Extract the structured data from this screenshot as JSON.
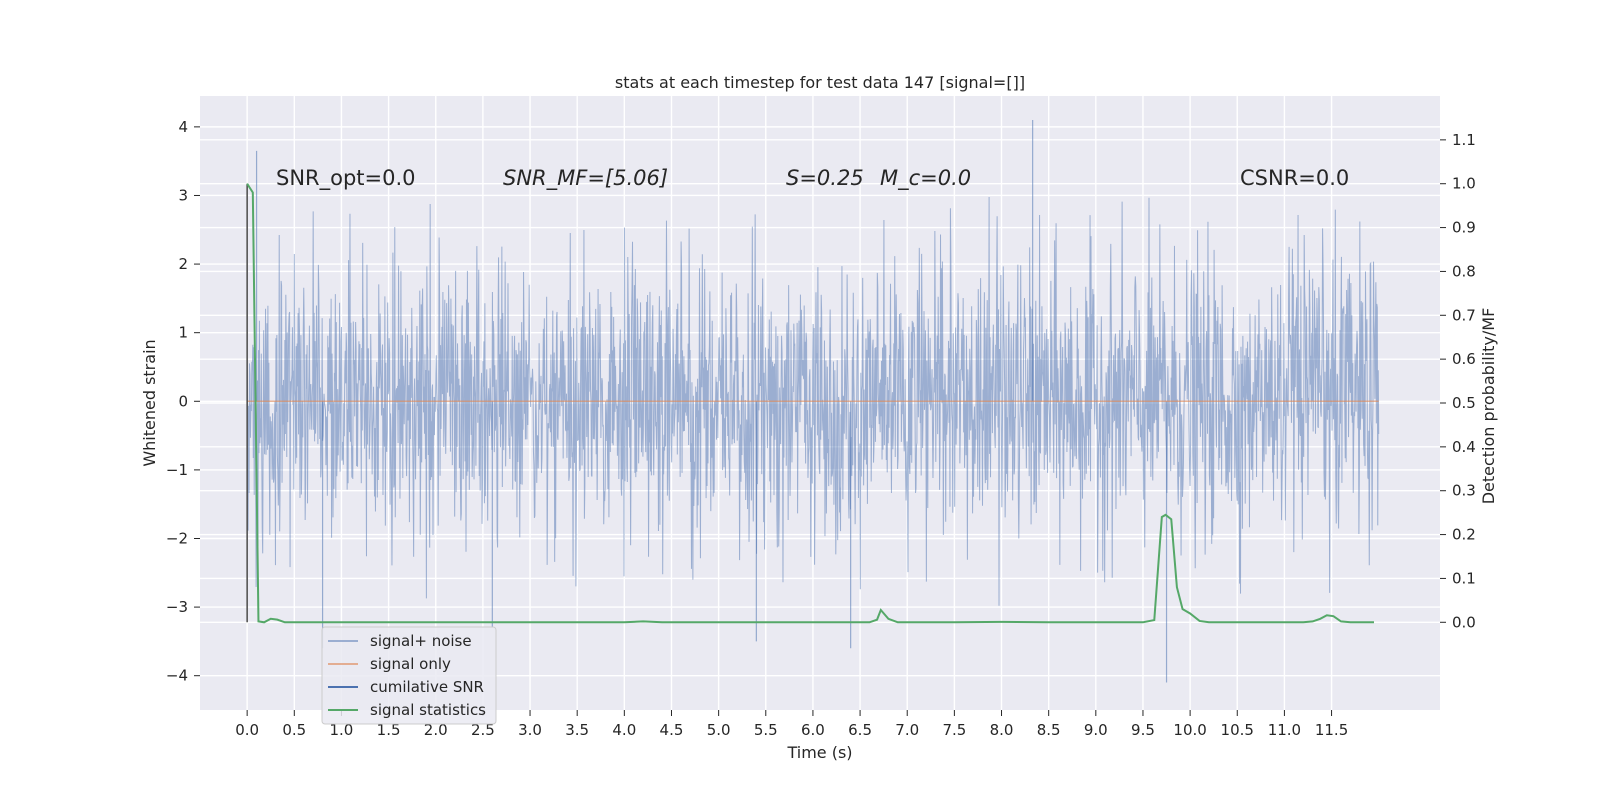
{
  "chart_data": {
    "type": "line",
    "title": "stats at each timestep for test data 147 [signal=[]]",
    "xlabel": "Time (s)",
    "ylabel": "Whitened strain",
    "y2label": "Detection probability/MF",
    "xlim": [
      -0.5,
      12.65
    ],
    "ylim": [
      -4.5,
      4.45
    ],
    "y2lim": [
      -0.2,
      1.2
    ],
    "x_ticks": [
      0.0,
      0.5,
      1.0,
      1.5,
      2.0,
      2.5,
      3.0,
      3.5,
      4.0,
      4.5,
      5.0,
      5.5,
      6.0,
      6.5,
      7.0,
      7.5,
      8.0,
      8.5,
      9.0,
      9.5,
      10.0,
      10.5,
      11.0,
      11.5
    ],
    "x_tick_labels": [
      "0.0",
      "0.5",
      "1.0",
      "1.5",
      "2.0",
      "2.5",
      "3.0",
      "3.5",
      "4.0",
      "4.5",
      "5.0",
      "5.5",
      "6.0",
      "6.5",
      "7.0",
      "7.5",
      "8.0",
      "8.5",
      "9.0",
      "9.5",
      "10.0",
      "10.5",
      "11.0",
      "11.5"
    ],
    "y_ticks": [
      4,
      3,
      2,
      1,
      0,
      -1,
      -2,
      -3,
      -4
    ],
    "y_tick_labels": [
      "4",
      "3",
      "2",
      "1",
      "0",
      "−1",
      "−2",
      "−3",
      "−4"
    ],
    "y2_ticks": [
      1.1,
      1.0,
      0.9,
      0.8,
      0.7,
      0.6,
      0.5,
      0.4,
      0.3,
      0.2,
      0.1,
      0.0
    ],
    "y2_tick_labels": [
      "1.1",
      "1.0",
      "0.9",
      "0.8",
      "0.7",
      "0.6",
      "0.5",
      "0.4",
      "0.3",
      "0.2",
      "0.1",
      "0.0"
    ],
    "grid": true,
    "legend_placement": "lower-left",
    "annotations": [
      "SNR_opt=0.0",
      "SNR_MF=[5.06]",
      "S=0.25",
      "M_c=0.0",
      "CSNR=0.0"
    ],
    "series": [
      {
        "name": "signal+ noise",
        "color": "#4c72b0",
        "axis": "left",
        "description": "whitened noise strain, dense filled trace between about -3 and +3 for t in [0, 12]",
        "duration": 12.0,
        "envelope": [
          -3.0,
          3.0
        ],
        "peaks": [
          [
            0.1,
            3.65
          ],
          [
            8.33,
            4.1
          ],
          [
            9.75,
            -4.1
          ],
          [
            0.8,
            -3.6
          ],
          [
            6.4,
            -3.6
          ],
          [
            5.4,
            -3.5
          ],
          [
            2.6,
            -3.3
          ]
        ]
      },
      {
        "name": "signal only",
        "color": "#dd8452",
        "axis": "left",
        "x": [
          0.0,
          12.0
        ],
        "y": [
          0.0,
          0.0
        ]
      },
      {
        "name": "cumilative SNR",
        "color": "#4c72b0",
        "axis": "right",
        "x": [
          0.0,
          0.0
        ],
        "y": [
          0.0,
          1.0
        ]
      },
      {
        "name": "signal statistics",
        "color": "#55a868",
        "axis": "right",
        "x": [
          0.0,
          0.06,
          0.12,
          0.18,
          0.25,
          0.32,
          0.4,
          0.5,
          1.0,
          2.0,
          3.0,
          4.0,
          4.2,
          4.4,
          5.0,
          6.0,
          6.5,
          6.6,
          6.68,
          6.72,
          6.8,
          6.9,
          7.0,
          7.5,
          8.0,
          8.5,
          9.0,
          9.5,
          9.62,
          9.7,
          9.74,
          9.8,
          9.86,
          9.92,
          10.0,
          10.1,
          10.2,
          10.5,
          11.0,
          11.2,
          11.3,
          11.38,
          11.45,
          11.52,
          11.6,
          11.7,
          11.8,
          11.95
        ],
        "y": [
          1.0,
          0.98,
          0.002,
          0.0,
          0.008,
          0.006,
          0.0,
          0.0,
          0.0,
          0.0,
          0.0,
          0.0,
          0.002,
          0.0,
          0.0,
          0.0,
          0.0,
          0.0,
          0.006,
          0.028,
          0.008,
          0.0,
          0.0,
          0.0,
          0.001,
          0.0,
          0.0,
          0.0,
          0.005,
          0.24,
          0.245,
          0.235,
          0.08,
          0.03,
          0.02,
          0.003,
          0.0,
          0.0,
          0.0,
          0.0,
          0.002,
          0.008,
          0.016,
          0.014,
          0.002,
          0.0,
          0.0,
          0.0
        ]
      }
    ]
  }
}
